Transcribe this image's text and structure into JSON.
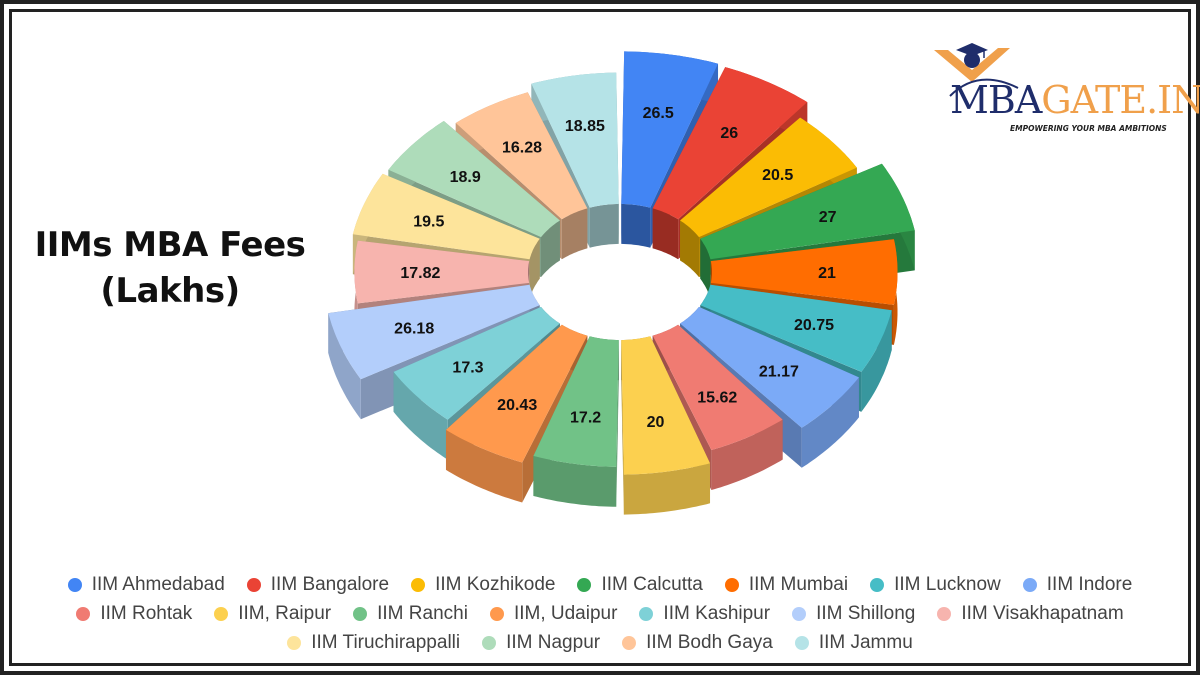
{
  "title": {
    "line1": "IIMs MBA Fees",
    "line2": "(Lakhs)"
  },
  "logo": {
    "brand_prefix": "MBA",
    "brand_suffix": "GATE.IN",
    "tagline": "EMPOWERING YOUR MBA AMBITIONS",
    "colors": {
      "navy": "#1f2d6b",
      "orange": "#f0a04b"
    }
  },
  "chart_data": {
    "type": "pie",
    "variant": "3d-exploded-donut (variable radius)",
    "title": "IIMs MBA Fees (Lakhs)",
    "unit": "Lakhs",
    "legend_position": "bottom",
    "categories": [
      "IIM Ahmedabad",
      "IIM Bangalore",
      "IIM Kozhikode",
      "IIM Calcutta",
      "IIM Mumbai",
      "IIM Lucknow",
      "IIM Indore",
      "IIM Rohtak",
      "IIM, Raipur",
      "IIM Ranchi",
      "IIM, Udaipur",
      "IIM Kashipur",
      "IIM Shillong",
      "IIM Visakhapatnam",
      "IIM Tiruchirappalli",
      "IIM Nagpur",
      "IIM Bodh Gaya",
      "IIM Jammu"
    ],
    "values": [
      26.5,
      26,
      20.5,
      27,
      21,
      20.75,
      21.17,
      15.62,
      20,
      17.2,
      20.43,
      17.3,
      26.18,
      17.82,
      19.5,
      18.9,
      16.28,
      18.85
    ],
    "labels": [
      "26.5",
      "26",
      "20.5",
      "27",
      "21",
      "20.75",
      "21.17",
      "15.62",
      "20",
      "17.2",
      "20.43",
      "17.3",
      "26.18",
      "17.82",
      "19.5",
      "18.9",
      "16.28",
      "18.85"
    ],
    "colors": [
      "#4285f4",
      "#ea4335",
      "#fbbc04",
      "#34a853",
      "#ff6d01",
      "#46bdc6",
      "#7baaf7",
      "#f07b72",
      "#fcd04f",
      "#71c287",
      "#ff994d",
      "#7ed1d7",
      "#b3cefb",
      "#f7b4ae",
      "#fde49b",
      "#aedcba",
      "#ffc599",
      "#b5e3e7"
    ]
  },
  "legend": {
    "rows": [
      [
        0,
        1,
        2,
        3,
        4,
        5,
        6
      ],
      [
        7,
        8,
        9,
        10,
        11,
        12,
        13
      ],
      [
        14,
        15,
        16,
        17
      ]
    ]
  }
}
